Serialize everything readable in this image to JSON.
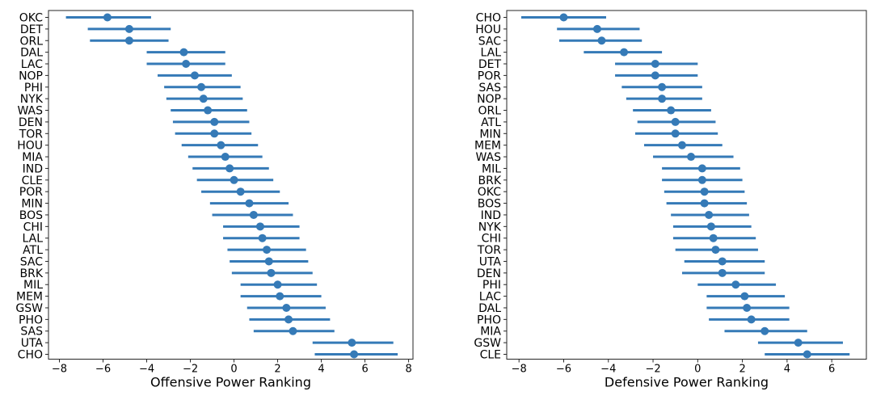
{
  "figure": {
    "background": "#ffffff"
  },
  "colors": {
    "accent": "#357ab7",
    "axis": "#262626",
    "text": "#000000"
  },
  "chart_data": [
    {
      "type": "scatter",
      "subtype": "horizontal-errorbar",
      "title": "",
      "xlabel": "Offensive Power Ranking",
      "ylabel": "",
      "xlim": [
        -8.5,
        8.2
      ],
      "xticks": [
        -8,
        -6,
        -4,
        -2,
        0,
        2,
        4,
        6,
        8
      ],
      "grid": false,
      "legend": null,
      "categories": [
        "OKC",
        "DET",
        "ORL",
        "DAL",
        "LAC",
        "NOP",
        "PHI",
        "NYK",
        "WAS",
        "DEN",
        "TOR",
        "HOU",
        "MIA",
        "IND",
        "CLE",
        "POR",
        "MIN",
        "BOS",
        "CHI",
        "LAL",
        "ATL",
        "SAC",
        "BRK",
        "MIL",
        "MEM",
        "GSW",
        "PHO",
        "SAS",
        "UTA",
        "CHO"
      ],
      "series": [
        {
          "name": "offensive-power-ranking",
          "values": [
            -5.8,
            -4.8,
            -4.8,
            -2.3,
            -2.2,
            -1.8,
            -1.5,
            -1.4,
            -1.2,
            -0.9,
            -0.9,
            -0.6,
            -0.4,
            -0.2,
            0.0,
            0.3,
            0.7,
            0.9,
            1.2,
            1.3,
            1.5,
            1.6,
            1.7,
            2.0,
            2.1,
            2.4,
            2.5,
            2.7,
            5.4,
            5.5
          ],
          "ci_low": [
            -7.7,
            -6.7,
            -6.6,
            -4.0,
            -4.0,
            -3.5,
            -3.2,
            -3.1,
            -2.9,
            -2.8,
            -2.7,
            -2.4,
            -2.1,
            -1.9,
            -1.7,
            -1.5,
            -1.1,
            -1.0,
            -0.5,
            -0.5,
            -0.3,
            -0.2,
            -0.1,
            0.3,
            0.3,
            0.6,
            0.7,
            0.9,
            3.6,
            3.7
          ],
          "ci_high": [
            -3.8,
            -2.9,
            -3.0,
            -0.4,
            -0.4,
            -0.1,
            0.3,
            0.4,
            0.6,
            0.7,
            0.8,
            1.1,
            1.3,
            1.6,
            1.8,
            2.1,
            2.5,
            2.7,
            3.0,
            3.0,
            3.3,
            3.4,
            3.6,
            3.8,
            4.0,
            4.2,
            4.4,
            4.6,
            7.3,
            7.5
          ]
        }
      ]
    },
    {
      "type": "scatter",
      "subtype": "horizontal-errorbar",
      "title": "",
      "xlabel": "Defensive Power Ranking",
      "ylabel": "",
      "xlim": [
        -8.55,
        7.55
      ],
      "xticks": [
        -8,
        -6,
        -4,
        -2,
        0,
        2,
        4,
        6
      ],
      "grid": false,
      "legend": null,
      "categories": [
        "CHO",
        "HOU",
        "SAC",
        "LAL",
        "DET",
        "POR",
        "SAS",
        "NOP",
        "ORL",
        "ATL",
        "MIN",
        "MEM",
        "WAS",
        "MIL",
        "BRK",
        "OKC",
        "BOS",
        "IND",
        "NYK",
        "CHI",
        "TOR",
        "UTA",
        "DEN",
        "PHI",
        "LAC",
        "DAL",
        "PHO",
        "MIA",
        "GSW",
        "CLE"
      ],
      "series": [
        {
          "name": "defensive-power-ranking",
          "values": [
            -6.0,
            -4.5,
            -4.3,
            -3.3,
            -1.9,
            -1.9,
            -1.6,
            -1.6,
            -1.2,
            -1.0,
            -1.0,
            -0.7,
            -0.3,
            0.2,
            0.2,
            0.3,
            0.3,
            0.5,
            0.6,
            0.7,
            0.8,
            1.1,
            1.1,
            1.7,
            2.1,
            2.2,
            2.4,
            3.0,
            4.5,
            4.9
          ],
          "ci_low": [
            -7.9,
            -6.3,
            -6.2,
            -5.1,
            -3.7,
            -3.7,
            -3.4,
            -3.2,
            -2.9,
            -2.7,
            -2.8,
            -2.4,
            -2.0,
            -1.6,
            -1.6,
            -1.5,
            -1.4,
            -1.2,
            -1.1,
            -1.1,
            -1.0,
            -0.6,
            -0.7,
            0.0,
            0.4,
            0.4,
            0.5,
            1.2,
            2.7,
            3.0
          ],
          "ci_high": [
            -4.1,
            -2.6,
            -2.5,
            -1.6,
            0.0,
            0.0,
            0.2,
            0.2,
            0.6,
            0.8,
            0.9,
            1.1,
            1.6,
            1.9,
            2.0,
            2.1,
            2.2,
            2.3,
            2.4,
            2.6,
            2.7,
            3.0,
            3.0,
            3.5,
            3.9,
            4.1,
            4.1,
            4.9,
            6.5,
            6.8
          ]
        }
      ]
    }
  ]
}
